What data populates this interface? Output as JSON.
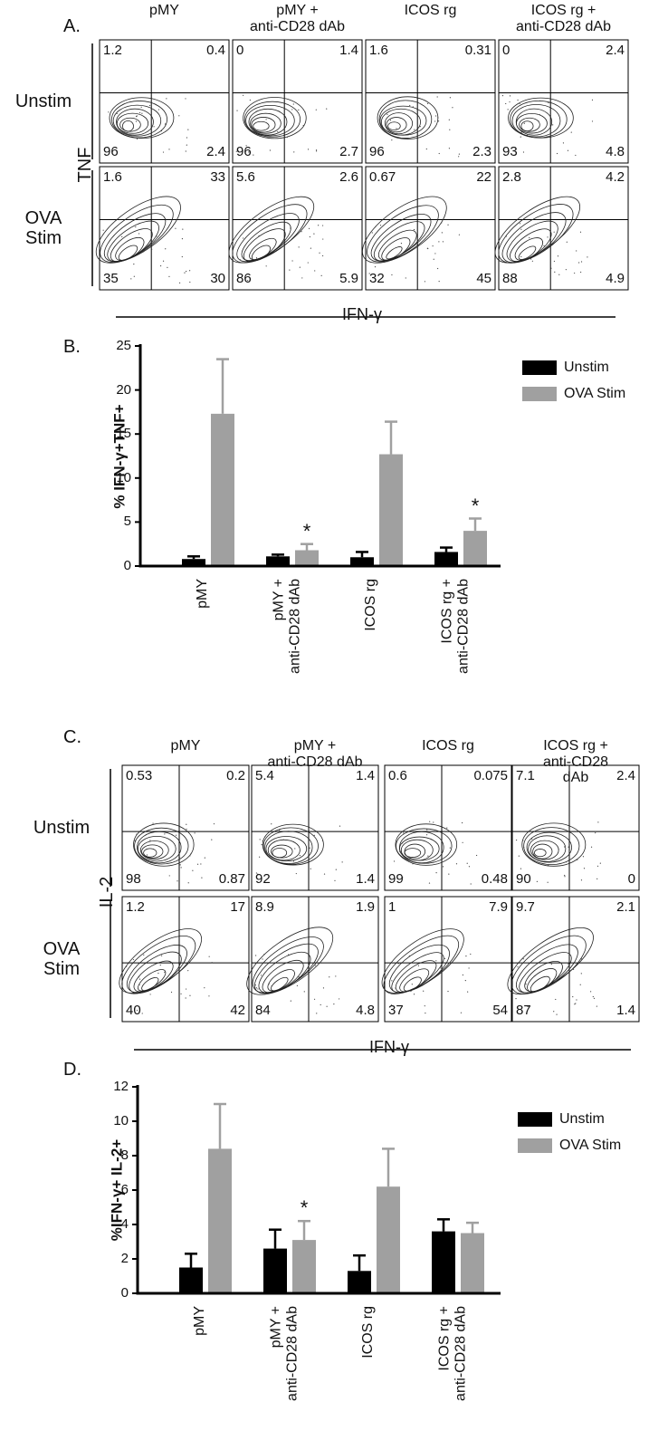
{
  "chart_data": [
    {
      "type": "flow",
      "panel_label": "A.",
      "columns": [
        "pMY",
        "pMY +\nanti-CD28 dAb",
        "ICOS rg",
        "ICOS rg +\nanti-CD28 dAb"
      ],
      "rows": [
        "Unstim",
        "OVA\nStim"
      ],
      "x_label": "IFN-γ",
      "y_label": "TNF",
      "quadrants": [
        [
          [
            1.2,
            0.4,
            96,
            2.4
          ],
          [
            0,
            1.4,
            96,
            2.7
          ],
          [
            1.6,
            0.31,
            96,
            2.3
          ],
          [
            0,
            2.4,
            93,
            4.8
          ]
        ],
        [
          [
            1.6,
            33,
            35,
            30
          ],
          [
            5.6,
            2.6,
            86,
            5.9
          ],
          [
            0.67,
            22,
            32,
            45
          ],
          [
            2.8,
            4.2,
            88,
            4.9
          ]
        ]
      ]
    },
    {
      "type": "bar",
      "panel_label": "B.",
      "y_label": "% IFN-γ+TNF+",
      "categories": [
        "pMY",
        "pMY +\nanti-CD28 dAb",
        "ICOS rg",
        "ICOS rg +\nanti-CD28 dAb"
      ],
      "series": [
        {
          "name": "Unstim",
          "color": "#000000",
          "values": [
            0.8,
            1.1,
            1.0,
            1.6
          ],
          "errors": [
            0.3,
            0.2,
            0.6,
            0.5
          ]
        },
        {
          "name": "OVA Stim",
          "color": "#a0a0a0",
          "values": [
            17.3,
            1.8,
            12.7,
            4.0
          ],
          "errors": [
            6.2,
            0.7,
            3.7,
            1.4
          ],
          "markers": [
            null,
            "*",
            null,
            "*"
          ]
        }
      ],
      "ylim": [
        0,
        25
      ],
      "yticks": [
        0,
        5,
        10,
        15,
        20,
        25
      ],
      "legend": "top-right"
    },
    {
      "type": "flow",
      "panel_label": "C.",
      "columns": [
        "pMY",
        "pMY +\nanti-CD28 dAb",
        "ICOS rg",
        "ICOS rg +\nanti-CD28 dAb"
      ],
      "rows": [
        "Unstim",
        "OVA\nStim"
      ],
      "x_label": "IFN-γ",
      "y_label": "IL-2",
      "quadrants": [
        [
          [
            0.53,
            0.2,
            98,
            0.87
          ],
          [
            5.4,
            1.4,
            92,
            1.4
          ],
          [
            0.6,
            0.075,
            99,
            0.48
          ],
          [
            7.1,
            2.4,
            90,
            0
          ]
        ],
        [
          [
            1.2,
            17,
            40,
            42
          ],
          [
            8.9,
            1.9,
            84,
            4.8
          ],
          [
            1,
            7.9,
            37,
            54
          ],
          [
            9.7,
            2.1,
            87,
            1.4
          ]
        ]
      ]
    },
    {
      "type": "bar",
      "panel_label": "D.",
      "y_label": "%IFN-γ+ IL-2+",
      "categories": [
        "pMY",
        "pMY +\nanti-CD28 dAb",
        "ICOS rg",
        "ICOS rg +\nanti-CD28 dAb"
      ],
      "series": [
        {
          "name": "Unstim",
          "color": "#000000",
          "values": [
            1.5,
            2.6,
            1.3,
            3.6
          ],
          "errors": [
            0.8,
            1.1,
            0.9,
            0.7
          ]
        },
        {
          "name": "OVA Stim",
          "color": "#a0a0a0",
          "values": [
            8.4,
            3.1,
            6.2,
            3.5
          ],
          "errors": [
            2.6,
            1.1,
            2.2,
            0.6
          ],
          "markers": [
            null,
            "*",
            null,
            null
          ]
        }
      ],
      "ylim": [
        0,
        12
      ],
      "yticks": [
        0,
        2,
        4,
        6,
        8,
        10,
        12
      ],
      "legend": "top-right"
    }
  ]
}
